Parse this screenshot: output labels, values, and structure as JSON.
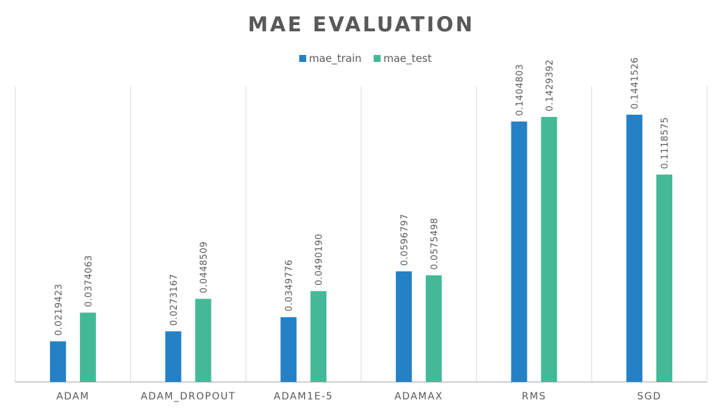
{
  "chart_data": {
    "type": "bar",
    "title": "MAE EVALUATION",
    "xlabel": "",
    "ylabel": "",
    "ylim": [
      0,
      0.16
    ],
    "grid": "vertical category separators",
    "legend_position": "top",
    "categories": [
      "ADAM",
      "ADAM_DROPOUT",
      "ADAM1E-5",
      "ADAMAX",
      "RMS",
      "SGD"
    ],
    "series": [
      {
        "name": "mae_train",
        "color": "#2581C6",
        "values": [
          0.0219423,
          0.0273167,
          0.0349776,
          0.0596797,
          0.1404803,
          0.1441526
        ],
        "labels": [
          "0.0219423",
          "0.0273167",
          "0.0349776",
          "0.0596797",
          "0.1404803",
          "0.1441526"
        ]
      },
      {
        "name": "mae_test",
        "color": "#43B997",
        "values": [
          0.0374063,
          0.0448509,
          0.049019,
          0.0575498,
          0.1429392,
          0.1118575
        ],
        "labels": [
          "0.0374063",
          "0.0448509",
          "0.0490190",
          "0.0575498",
          "0.1429392",
          "0.1118575"
        ]
      }
    ]
  }
}
